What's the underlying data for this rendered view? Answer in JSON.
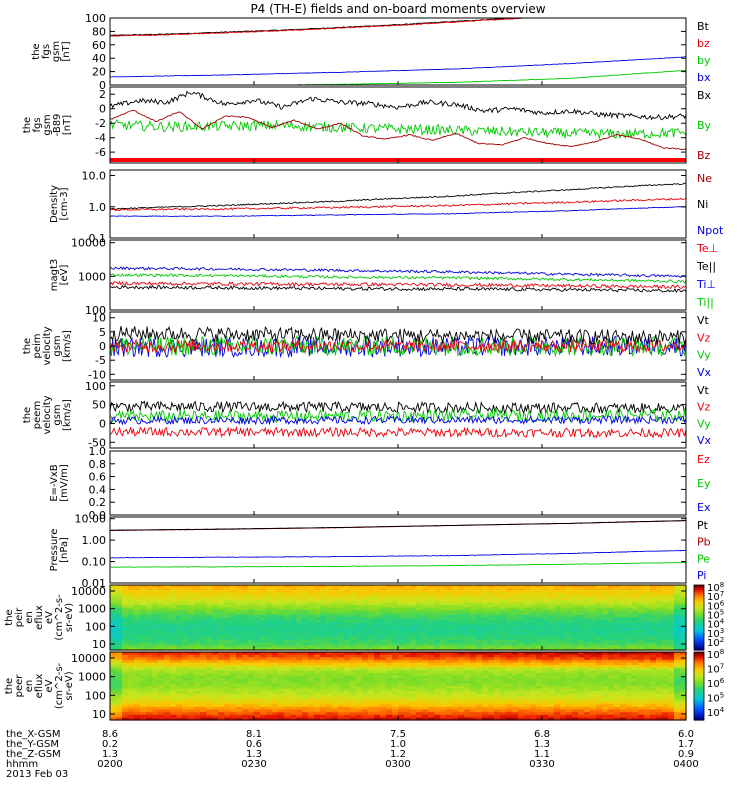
{
  "title": "P4 (TH-E) fields and on-board moments overview",
  "colors": {
    "black": "#000000",
    "red": "#e8000b",
    "green": "#00c800",
    "blue": "#0000e0",
    "dkred": "#a00000",
    "flag": "#ff0000"
  },
  "chart_data": [
    {
      "type": "line",
      "ylabel": [
        "the",
        "fgs",
        "gsm",
        "[nT]"
      ],
      "yticks": [
        "100",
        "80",
        "60",
        "40",
        "20",
        "0"
      ],
      "ylim": [
        0,
        100
      ],
      "scale": "linear",
      "legend": [
        {
          "label": "Bt",
          "color": "black"
        },
        {
          "label": "bz",
          "color": "red"
        },
        {
          "label": "by",
          "color": "green"
        },
        {
          "label": "bx",
          "color": "blue"
        }
      ],
      "series": [
        {
          "name": "Bt",
          "color": "black",
          "x": [
            0,
            0.1,
            0.2,
            0.3,
            0.4,
            0.5,
            0.6,
            0.7,
            0.8,
            1
          ],
          "y": [
            74,
            76,
            79,
            82,
            86,
            90,
            95,
            100,
            105,
            113
          ],
          "noise": 0.6
        },
        {
          "name": "bz",
          "color": "red",
          "x": [
            0,
            0.1,
            0.2,
            0.3,
            0.4,
            0.5,
            0.6,
            0.7,
            0.8,
            1
          ],
          "y": [
            73,
            75,
            78,
            81,
            85,
            89,
            94,
            99,
            104,
            112
          ],
          "noise": 0.6
        },
        {
          "name": "by",
          "color": "green",
          "x": [
            0,
            0.2,
            0.4,
            0.6,
            0.8,
            1
          ],
          "y": [
            -2,
            -1,
            1,
            4,
            10,
            22
          ],
          "noise": 0.3
        },
        {
          "name": "bx",
          "color": "blue",
          "x": [
            0,
            0.2,
            0.4,
            0.6,
            0.8,
            1
          ],
          "y": [
            12,
            15,
            19,
            24,
            32,
            42
          ],
          "noise": 0.3
        }
      ]
    },
    {
      "type": "line",
      "ylabel": [
        "the",
        "fgs",
        "gsm",
        "-B89",
        "[nT]"
      ],
      "yticks": [
        "2",
        "0",
        "-2",
        "-4",
        "-6"
      ],
      "ylim": [
        -7.5,
        3
      ],
      "scale": "linear",
      "legend": [
        {
          "label": "Bx",
          "color": "black"
        },
        {
          "label": "By",
          "color": "green"
        },
        {
          "label": "Bz",
          "color": "dkred"
        }
      ],
      "flag": true,
      "series": [
        {
          "name": "Bx",
          "color": "black",
          "x": [
            0,
            0.05,
            0.1,
            0.14,
            0.2,
            0.25,
            0.3,
            0.35,
            0.4,
            0.45,
            0.5,
            0.55,
            0.6,
            0.65,
            0.7,
            0.75,
            0.8,
            0.85,
            0.9,
            0.95,
            1
          ],
          "y": [
            0.3,
            1.1,
            0.9,
            2.3,
            0.6,
            1.2,
            0.2,
            1.4,
            0.9,
            0.7,
            0.2,
            0.9,
            0.6,
            -0.3,
            0.0,
            -0.6,
            -0.3,
            -0.8,
            -1.0,
            -1.2,
            -1.0
          ],
          "noise": 0.35
        },
        {
          "name": "By",
          "color": "green",
          "x": [
            0,
            0.1,
            0.2,
            0.3,
            0.4,
            0.5,
            0.6,
            0.7,
            0.8,
            0.9,
            1
          ],
          "y": [
            -2.2,
            -2.5,
            -2.4,
            -2.3,
            -2.6,
            -2.8,
            -3.0,
            -3.2,
            -3.4,
            -3.5,
            -3.3
          ],
          "noise": 0.7
        },
        {
          "name": "Bz",
          "color": "dkred",
          "x": [
            0,
            0.04,
            0.08,
            0.12,
            0.16,
            0.2,
            0.24,
            0.28,
            0.32,
            0.36,
            0.4,
            0.44,
            0.48,
            0.52,
            0.56,
            0.6,
            0.64,
            0.68,
            0.72,
            0.76,
            0.8,
            0.84,
            0.88,
            0.92,
            0.96,
            1
          ],
          "y": [
            -1.5,
            -0.2,
            -1.8,
            -0.4,
            -2.8,
            -1.0,
            -1.2,
            -2.6,
            -1.6,
            -2.8,
            -2.0,
            -3.8,
            -4.2,
            -3.6,
            -4.4,
            -3.4,
            -4.8,
            -5.0,
            -4.0,
            -4.8,
            -5.2,
            -4.6,
            -3.6,
            -4.2,
            -5.4,
            -5.6
          ],
          "noise": 0.08
        }
      ]
    },
    {
      "type": "line",
      "ylabel": [
        "Density",
        "[cm-3]"
      ],
      "yticks": [
        "10.0",
        "1.0",
        "0.1"
      ],
      "ylim": [
        0.1,
        15
      ],
      "scale": "log",
      "legend": [
        {
          "label": "Ne",
          "color": "dkred"
        },
        {
          "label": "Ni",
          "color": "black"
        },
        {
          "label": "Npot",
          "color": "blue"
        }
      ],
      "series": [
        {
          "name": "Ni",
          "color": "black",
          "x": [
            0,
            0.2,
            0.4,
            0.6,
            0.8,
            1
          ],
          "y": [
            0.85,
            1.1,
            1.5,
            2.2,
            3.5,
            5.5
          ],
          "noise": 0.02
        },
        {
          "name": "Ne",
          "color": "red",
          "x": [
            0,
            0.2,
            0.4,
            0.6,
            0.8,
            1
          ],
          "y": [
            0.8,
            0.85,
            0.95,
            1.1,
            1.4,
            1.8
          ],
          "noise": 0.03
        },
        {
          "name": "Npot",
          "color": "blue",
          "x": [
            0,
            0.2,
            0.4,
            0.6,
            0.8,
            1
          ],
          "y": [
            0.5,
            0.5,
            0.55,
            0.6,
            0.75,
            1.0
          ],
          "noise": 0.01
        }
      ]
    },
    {
      "type": "line",
      "ylabel": [
        "magt3",
        "[eV]"
      ],
      "yticks": [
        "10000",
        "1000",
        "100"
      ],
      "ylim": [
        100,
        12000
      ],
      "scale": "log",
      "legend": [
        {
          "label": "Te⊥",
          "color": "red"
        },
        {
          "label": "Te||",
          "color": "black"
        },
        {
          "label": "Ti⊥",
          "color": "blue"
        },
        {
          "label": "Ti||",
          "color": "green"
        }
      ],
      "series": [
        {
          "name": "Ti⊥",
          "color": "blue",
          "x": [
            0,
            0.2,
            0.4,
            0.6,
            0.8,
            1
          ],
          "y": [
            1750,
            1650,
            1500,
            1350,
            1150,
            1000
          ],
          "noise": 0.04
        },
        {
          "name": "Ti||",
          "color": "green",
          "x": [
            0,
            0.2,
            0.4,
            0.6,
            0.8,
            1
          ],
          "y": [
            1100,
            1050,
            950,
            900,
            800,
            700
          ],
          "noise": 0.04
        },
        {
          "name": "Te⊥",
          "color": "red",
          "x": [
            0,
            0.2,
            0.4,
            0.6,
            0.8,
            1
          ],
          "y": [
            620,
            600,
            580,
            560,
            520,
            480
          ],
          "noise": 0.05
        },
        {
          "name": "Te||",
          "color": "black",
          "x": [
            0,
            0.2,
            0.4,
            0.6,
            0.8,
            1
          ],
          "y": [
            480,
            460,
            430,
            420,
            400,
            370
          ],
          "noise": 0.05
        }
      ]
    },
    {
      "type": "line",
      "ylabel": [
        "the",
        "peim",
        "velocity",
        "gsm",
        "[km/s]"
      ],
      "yticks": [
        "10",
        "5",
        "0",
        "-5",
        "-10"
      ],
      "ylim": [
        -12,
        12
      ],
      "scale": "linear",
      "legend": [
        {
          "label": "Vt",
          "color": "black"
        },
        {
          "label": "Vz",
          "color": "red"
        },
        {
          "label": "Vy",
          "color": "green"
        },
        {
          "label": "Vx",
          "color": "blue"
        }
      ],
      "series": [
        {
          "name": "Vx",
          "color": "blue",
          "x": [
            0,
            1
          ],
          "y": [
            -0.5,
            0
          ],
          "noise": 3.5
        },
        {
          "name": "Vy",
          "color": "green",
          "x": [
            0,
            1
          ],
          "y": [
            0,
            0
          ],
          "noise": 3.5
        },
        {
          "name": "Vz",
          "color": "red",
          "x": [
            0,
            1
          ],
          "y": [
            0,
            0
          ],
          "noise": 2.2
        },
        {
          "name": "Vt",
          "color": "black",
          "x": [
            0,
            0.3,
            1
          ],
          "y": [
            4.5,
            4,
            3
          ],
          "noise": 2.6
        }
      ]
    },
    {
      "type": "line",
      "ylabel": [
        "the",
        "peem",
        "velocity",
        "gsm",
        "[km/s]"
      ],
      "yticks": [
        "100",
        "50",
        "0",
        "-50"
      ],
      "ylim": [
        -65,
        110
      ],
      "scale": "linear",
      "legend": [
        {
          "label": "Vt",
          "color": "black"
        },
        {
          "label": "Vz",
          "color": "red"
        },
        {
          "label": "Vy",
          "color": "green"
        },
        {
          "label": "Vx",
          "color": "blue"
        }
      ],
      "series": [
        {
          "name": "Vt",
          "color": "black",
          "x": [
            0,
            1
          ],
          "y": [
            45,
            40
          ],
          "noise": 14
        },
        {
          "name": "Vy",
          "color": "green",
          "x": [
            0,
            1
          ],
          "y": [
            18,
            22
          ],
          "noise": 16
        },
        {
          "name": "Vx",
          "color": "blue",
          "x": [
            0,
            1
          ],
          "y": [
            8,
            10
          ],
          "noise": 10
        },
        {
          "name": "Vz",
          "color": "red",
          "x": [
            0,
            1
          ],
          "y": [
            -22,
            -25
          ],
          "noise": 12
        }
      ]
    },
    {
      "type": "line",
      "ylabel": [
        "E=-VxB",
        "[mV/m]"
      ],
      "yticks": [
        "1.0",
        "0.8",
        "0.6",
        "0.4",
        "0.2",
        "0.0"
      ],
      "ylim": [
        0,
        1
      ],
      "scale": "linear",
      "legend": [
        {
          "label": "Ez",
          "color": "red"
        },
        {
          "label": "Ey",
          "color": "green"
        },
        {
          "label": "Ex",
          "color": "blue"
        }
      ],
      "series": []
    },
    {
      "type": "line",
      "ylabel": [
        "Pressure",
        "[nPa]"
      ],
      "yticks": [
        "10.00",
        "1.00",
        "0.10",
        "0.01"
      ],
      "ylim": [
        0.01,
        12
      ],
      "scale": "log",
      "legend": [
        {
          "label": "Pt",
          "color": "black"
        },
        {
          "label": "Pb",
          "color": "dkred"
        },
        {
          "label": "Pe",
          "color": "green"
        },
        {
          "label": "Pi",
          "color": "blue"
        }
      ],
      "series": [
        {
          "name": "Pb",
          "color": "dkred",
          "x": [
            0,
            0.2,
            0.4,
            0.6,
            0.8,
            1
          ],
          "y": [
            2.8,
            3.2,
            3.8,
            4.8,
            6.0,
            8.0
          ],
          "noise": 0.005
        },
        {
          "name": "Pt",
          "color": "black",
          "x": [
            0,
            0.2,
            0.4,
            0.6,
            0.8,
            1
          ],
          "y": [
            2.9,
            3.3,
            3.9,
            4.9,
            6.1,
            8.2
          ],
          "noise": 0.005
        },
        {
          "name": "Pi",
          "color": "blue",
          "x": [
            0,
            0.2,
            0.4,
            0.6,
            0.8,
            1
          ],
          "y": [
            0.15,
            0.16,
            0.17,
            0.19,
            0.24,
            0.33
          ],
          "noise": 0.01
        },
        {
          "name": "Pe",
          "color": "green",
          "x": [
            0,
            0.2,
            0.4,
            0.6,
            0.8,
            1
          ],
          "y": [
            0.055,
            0.057,
            0.06,
            0.065,
            0.075,
            0.09
          ],
          "noise": 0.01
        }
      ]
    },
    {
      "type": "heatmap",
      "ylabel": [
        "the",
        "peir",
        "en",
        "eflux",
        "eV",
        "(cm^2-s-",
        "sr-eV)"
      ],
      "yticks": [
        "10000",
        "1000",
        "100",
        "10"
      ],
      "scale": "log",
      "colorbar": [
        "10^8",
        "10^7",
        "10^6",
        "10^5",
        "10^4",
        "10^3",
        "10^2"
      ],
      "profile": [
        0.78,
        0.74,
        0.7,
        0.65,
        0.58,
        0.52,
        0.47,
        0.44,
        0.42,
        0.43,
        0.45,
        0.48,
        0.55
      ]
    },
    {
      "type": "heatmap",
      "ylabel": [
        "the",
        "peer",
        "en",
        "eflux",
        "eV",
        "(cm^2-s-",
        "sr-eV)"
      ],
      "yticks": [
        "10000",
        "1000",
        "100",
        "10"
      ],
      "scale": "log",
      "colorbar": [
        "10^8",
        "10^7",
        "10^6",
        "10^5",
        "10^4"
      ],
      "profile": [
        0.9,
        0.84,
        0.72,
        0.62,
        0.58,
        0.56,
        0.58,
        0.62,
        0.66,
        0.72,
        0.8,
        0.88,
        0.94
      ]
    }
  ],
  "axis_footer": {
    "rows": [
      {
        "label": "the_X-GSM",
        "values": [
          "8.6",
          "8.1",
          "7.5",
          "6.8",
          "6.0"
        ]
      },
      {
        "label": "the_Y-GSM",
        "values": [
          "0.2",
          "0.6",
          "1.0",
          "1.3",
          "1.7"
        ]
      },
      {
        "label": "the_Z-GSM",
        "values": [
          "1.3",
          "1.3",
          "1.2",
          "1.1",
          "0.9"
        ]
      },
      {
        "label": "hhmm",
        "values": [
          "0200",
          "0230",
          "0300",
          "0330",
          "0400"
        ]
      }
    ],
    "date": "2013 Feb 03"
  }
}
